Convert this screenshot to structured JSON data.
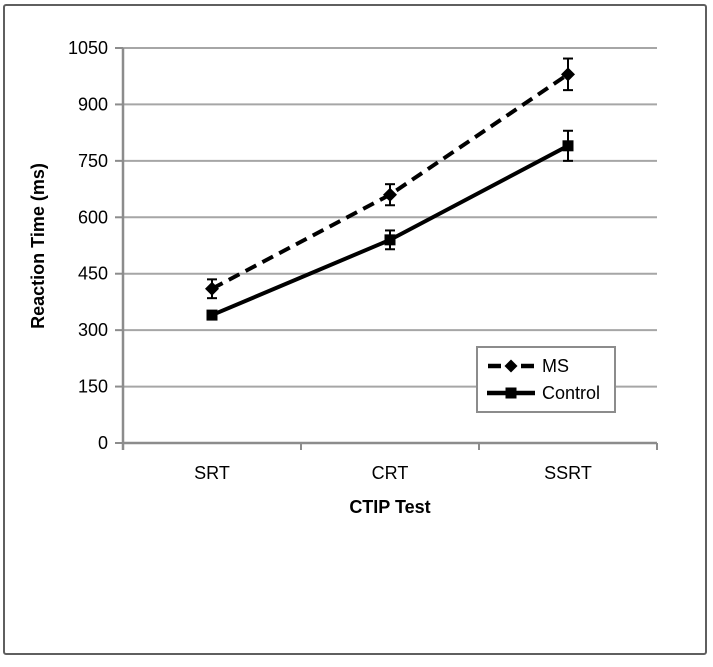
{
  "figure": {
    "background": "#ffffff",
    "border_color": "#5f5f5f"
  },
  "chart_data": {
    "type": "line",
    "title": "",
    "xlabel": "CTIP Test",
    "ylabel": "Reaction Time (ms)",
    "categories": [
      "SRT",
      "CRT",
      "SSRT"
    ],
    "y_axis": {
      "min": 0,
      "max": 1050,
      "step": 150,
      "tick_labels": [
        "0",
        "150",
        "300",
        "450",
        "600",
        "750",
        "900",
        "1050"
      ]
    },
    "grid": true,
    "series": [
      {
        "name": "MS",
        "values": [
          410,
          660,
          980
        ],
        "errors": [
          25,
          28,
          42
        ],
        "line_style": "dashed",
        "marker": "diamond",
        "color": "#000000"
      },
      {
        "name": "Control",
        "values": [
          340,
          540,
          790
        ],
        "errors": [
          10,
          25,
          40
        ],
        "line_style": "solid",
        "marker": "square",
        "color": "#000000"
      }
    ],
    "legend": {
      "position": "inside-right",
      "border_color": "#8c8c8c",
      "items": [
        "MS",
        "Control"
      ]
    },
    "colors": {
      "axis": "#8c8c8c",
      "gridline": "#a6a6a6",
      "error_bar": "#000000",
      "text": "#000000"
    }
  }
}
